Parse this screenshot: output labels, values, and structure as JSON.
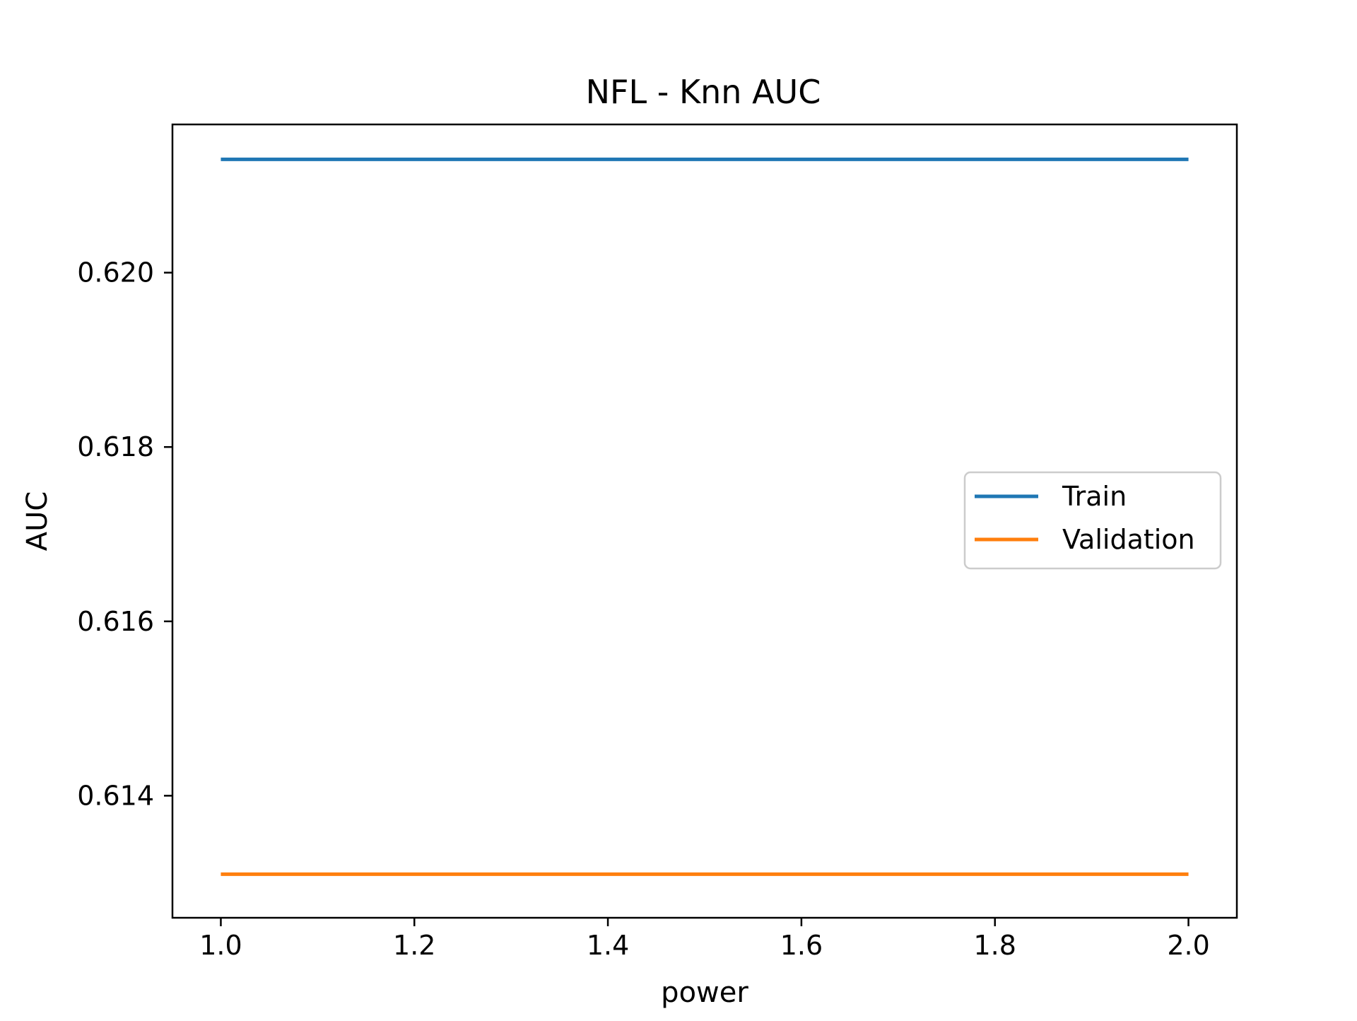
{
  "chart_data": {
    "type": "line",
    "title": "NFL - Knn AUC",
    "xlabel": "power",
    "ylabel": "AUC",
    "x": [
      1.0,
      2.0
    ],
    "xlim": [
      0.95,
      2.05
    ],
    "ylim": [
      0.6126,
      0.6217
    ],
    "xticks": [
      {
        "value": 1.0,
        "label": "1.0"
      },
      {
        "value": 1.2,
        "label": "1.2"
      },
      {
        "value": 1.4,
        "label": "1.4"
      },
      {
        "value": 1.6,
        "label": "1.6"
      },
      {
        "value": 1.8,
        "label": "1.8"
      },
      {
        "value": 2.0,
        "label": "2.0"
      }
    ],
    "yticks": [
      {
        "value": 0.614,
        "label": "0.614"
      },
      {
        "value": 0.616,
        "label": "0.616"
      },
      {
        "value": 0.618,
        "label": "0.618"
      },
      {
        "value": 0.62,
        "label": "0.620"
      }
    ],
    "series": [
      {
        "name": "Train",
        "color": "#1f77b4",
        "values": [
          0.6213,
          0.6213
        ]
      },
      {
        "name": "Validation",
        "color": "#ff7f0e",
        "values": [
          0.6131,
          0.6131
        ]
      }
    ],
    "grid": false,
    "legend_position": "center-right"
  }
}
